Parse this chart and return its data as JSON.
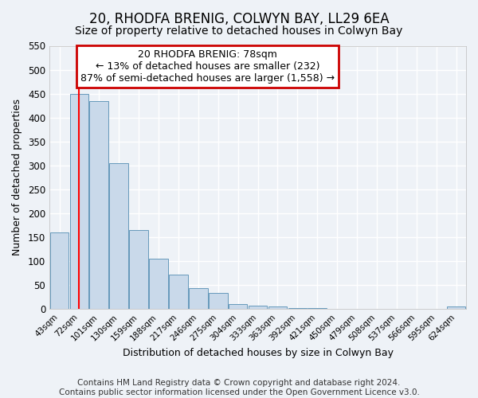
{
  "title": "20, RHODFA BRENIG, COLWYN BAY, LL29 6EA",
  "subtitle": "Size of property relative to detached houses in Colwyn Bay",
  "xlabel": "Distribution of detached houses by size in Colwyn Bay",
  "ylabel": "Number of detached properties",
  "categories": [
    "43sqm",
    "72sqm",
    "101sqm",
    "130sqm",
    "159sqm",
    "188sqm",
    "217sqm",
    "246sqm",
    "275sqm",
    "304sqm",
    "333sqm",
    "363sqm",
    "392sqm",
    "421sqm",
    "450sqm",
    "479sqm",
    "508sqm",
    "537sqm",
    "566sqm",
    "595sqm",
    "624sqm"
  ],
  "values": [
    160,
    450,
    435,
    305,
    165,
    105,
    72,
    44,
    33,
    10,
    8,
    5,
    3,
    2,
    1,
    1,
    1,
    1,
    1,
    1,
    5
  ],
  "bar_color": "#c9d9ea",
  "bar_edge_color": "#6699bb",
  "red_line_x": 1.0,
  "annotation_title": "20 RHODFA BRENIG: 78sqm",
  "annotation_line1": "← 13% of detached houses are smaller (232)",
  "annotation_line2": "87% of semi-detached houses are larger (1,558) →",
  "annotation_box_facecolor": "#ffffff",
  "annotation_border_color": "#cc0000",
  "ylim": [
    0,
    550
  ],
  "yticks": [
    0,
    50,
    100,
    150,
    200,
    250,
    300,
    350,
    400,
    450,
    500,
    550
  ],
  "footer_line1": "Contains HM Land Registry data © Crown copyright and database right 2024.",
  "footer_line2": "Contains public sector information licensed under the Open Government Licence v3.0.",
  "background_color": "#eef2f7",
  "plot_background_color": "#eef2f7",
  "grid_color": "#ffffff",
  "title_fontsize": 12,
  "subtitle_fontsize": 10,
  "annotation_fontsize": 9,
  "footer_fontsize": 7.5,
  "xlabel_fontsize": 9,
  "ylabel_fontsize": 9
}
